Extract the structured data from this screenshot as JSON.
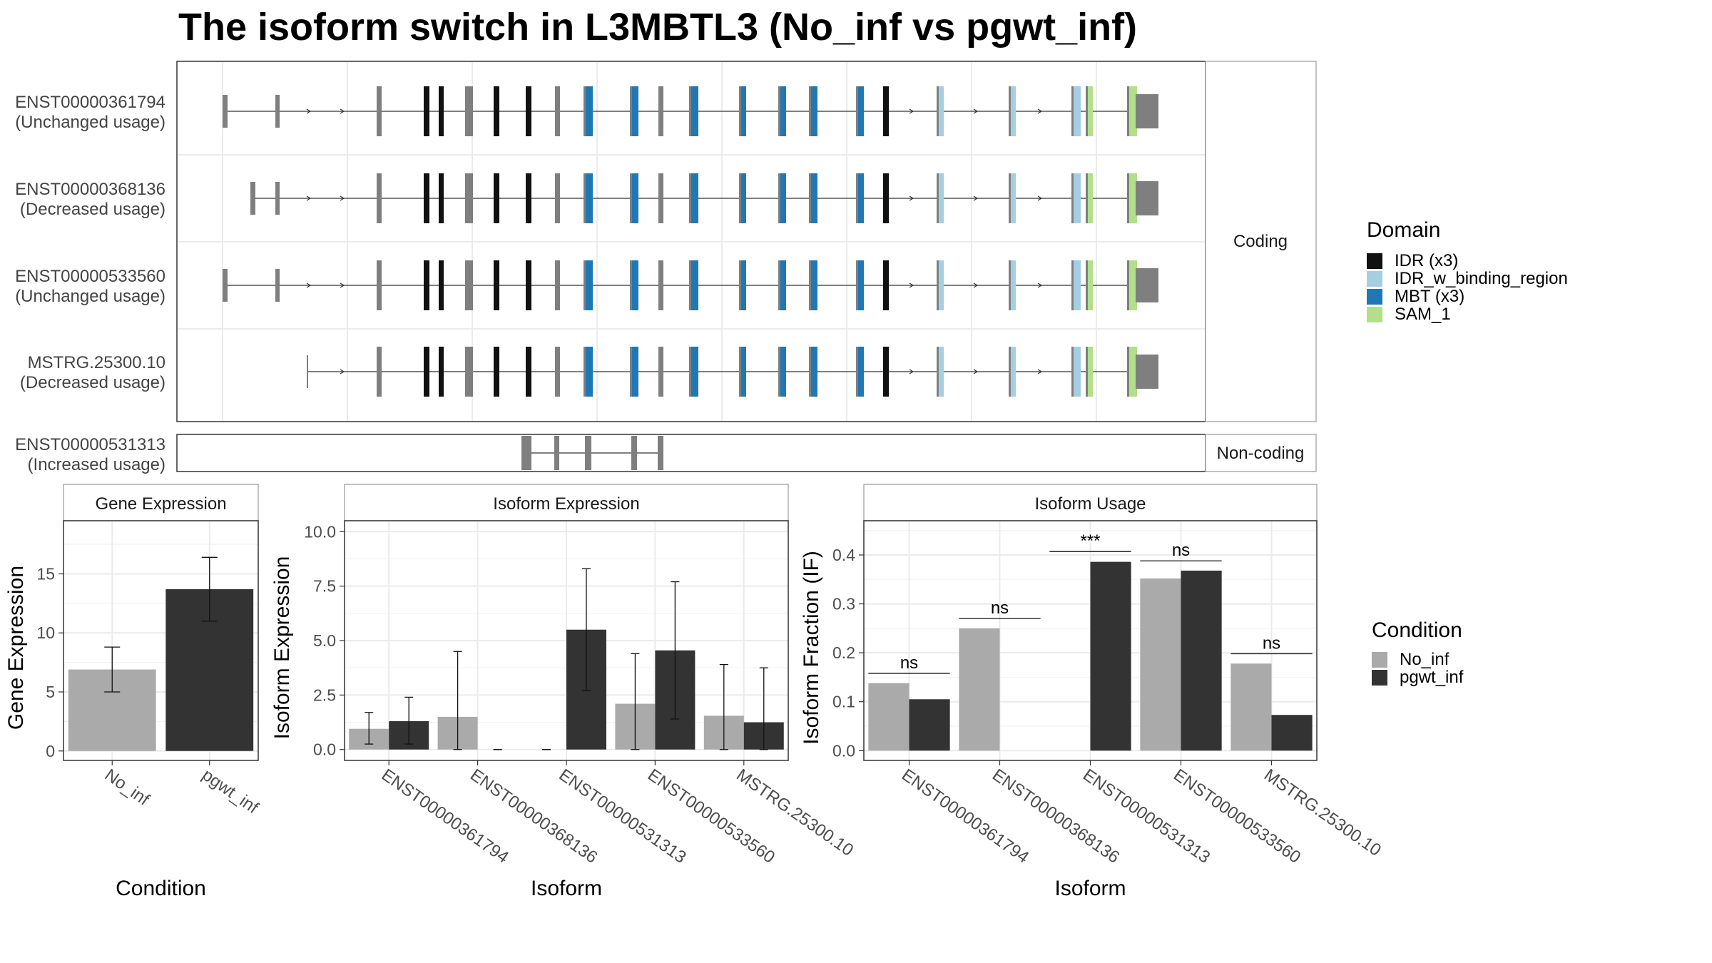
{
  "title": "The isoform switch in L3MBTL3 (No_inf vs pgwt_inf)",
  "structure": {
    "facets": [
      "Coding",
      "Non-coding"
    ],
    "coding_isoforms": [
      {
        "id": "ENST00000361794",
        "usage": "(Unchanged usage)",
        "first_exon": "a"
      },
      {
        "id": "ENST00000368136",
        "usage": "(Decreased usage)",
        "first_exon": "b"
      },
      {
        "id": "ENST00000533560",
        "usage": "(Unchanged usage)",
        "first_exon": "a"
      },
      {
        "id": "MSTRG.25300.10",
        "usage": "(Decreased usage)",
        "first_exon": "c"
      }
    ],
    "noncoding_isoforms": [
      {
        "id": "ENST00000531313",
        "usage": "(Increased usage)"
      }
    ]
  },
  "legend_domain": {
    "title": "Domain",
    "items": [
      {
        "label": "IDR (x3)",
        "color": "#111111"
      },
      {
        "label": "IDR_w_binding_region",
        "color": "#a6cee3"
      },
      {
        "label": "MBT (x3)",
        "color": "#1f78b4"
      },
      {
        "label": "SAM_1",
        "color": "#b2df8a"
      }
    ]
  },
  "legend_condition": {
    "title": "Condition",
    "items": [
      {
        "label": "No_inf",
        "color": "#aaaaaa"
      },
      {
        "label": "pgwt_inf",
        "color": "#333333"
      }
    ]
  },
  "chart_data": [
    {
      "type": "bar",
      "title": "Gene Expression",
      "xlabel": "Condition",
      "ylabel": "Gene Expression",
      "categories": [
        "No_inf",
        "pgwt_inf"
      ],
      "values": [
        6.9,
        13.7
      ],
      "error_low": [
        5.0,
        11.0
      ],
      "error_high": [
        8.8,
        16.4
      ],
      "ylim": [
        -0.8,
        19.5
      ],
      "yticks": [
        0,
        5,
        10,
        15
      ],
      "ytick_labels": [
        "0",
        "5",
        "10",
        "15"
      ],
      "colors": [
        "#aaaaaa",
        "#333333"
      ]
    },
    {
      "type": "bar",
      "title": "Isoform Expression",
      "xlabel": "Isoform",
      "ylabel": "Isoform Expression",
      "categories": [
        "ENST00000361794",
        "ENST00000368136",
        "ENST00000531313",
        "ENST00000533560",
        "MSTRG.25300.10"
      ],
      "series": [
        {
          "name": "No_inf",
          "values": [
            0.95,
            1.5,
            0.0,
            2.1,
            1.55
          ],
          "error_low": [
            0.25,
            0.0,
            0.0,
            0.0,
            0.0
          ],
          "error_high": [
            1.7,
            4.5,
            0.0,
            4.4,
            3.9
          ]
        },
        {
          "name": "pgwt_inf",
          "values": [
            1.3,
            0.0,
            5.5,
            4.55,
            1.25
          ],
          "error_low": [
            0.25,
            0.0,
            2.7,
            1.4,
            0.0
          ],
          "error_high": [
            2.4,
            0.0,
            8.3,
            7.7,
            3.75
          ]
        }
      ],
      "ylim": [
        -0.5,
        10.5
      ],
      "yticks": [
        0.0,
        2.5,
        5.0,
        7.5,
        10.0
      ],
      "ytick_labels": [
        "0.0",
        "2.5",
        "5.0",
        "7.5",
        "10.0"
      ]
    },
    {
      "type": "bar",
      "title": "Isoform Usage",
      "xlabel": "Isoform",
      "ylabel": "Isoform Fraction (IF)",
      "categories": [
        "ENST00000361794",
        "ENST00000368136",
        "ENST00000531313",
        "ENST00000533560",
        "MSTRG.25300.10"
      ],
      "series": [
        {
          "name": "No_inf",
          "values": [
            0.138,
            0.25,
            0.0,
            0.352,
            0.178
          ]
        },
        {
          "name": "pgwt_inf",
          "values": [
            0.105,
            0.0,
            0.386,
            0.368,
            0.073
          ]
        }
      ],
      "significance": [
        "ns",
        "ns",
        "***",
        "ns",
        "ns"
      ],
      "significance_y": [
        0.158,
        0.27,
        0.407,
        0.388,
        0.198
      ],
      "ylim": [
        -0.02,
        0.47
      ],
      "yticks": [
        0.0,
        0.1,
        0.2,
        0.3,
        0.4
      ],
      "ytick_labels": [
        "0.0",
        "0.1",
        "0.2",
        "0.3",
        "0.4"
      ]
    }
  ]
}
